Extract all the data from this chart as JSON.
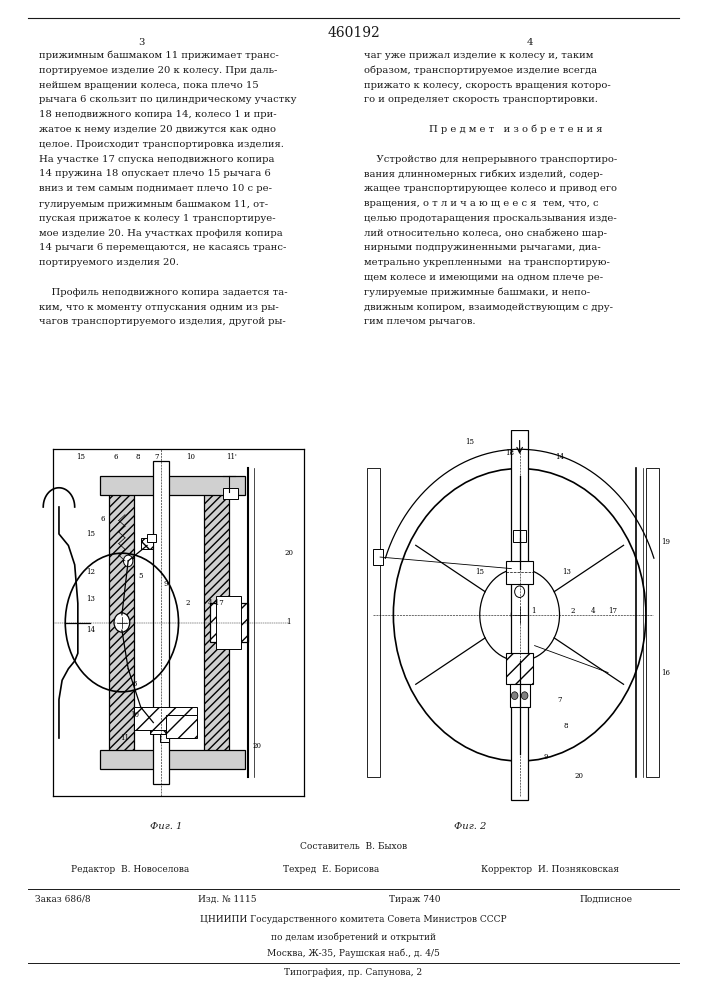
{
  "patent_number": "460192",
  "page_numbers": [
    "3",
    "4"
  ],
  "bg_color": "#ffffff",
  "text_color": "#1a1a1a",
  "column_left_text": [
    "прижимным башмаком 11 прижимает транс-",
    "портируемое изделие 20 к колесу. При даль-",
    "нейшем вращении колеса, пока плечо 15",
    "рычага 6 скользит по цилиндрическому участку",
    "18 неподвижного копира 14, колесо 1 и при-",
    "жатое к нему изделие 20 движутся как одно",
    "целое. Происходит транспортировка изделия.",
    "На участке 17 спуска неподвижного копира",
    "14 пружина 18 опускает плечо 15 рычага 6",
    "вниз и тем самым поднимает плечо 10 с ре-",
    "гулируемым прижимным башмаком 11, от-",
    "пуская прижатое к колесу 1 транспортируе-",
    "мое изделие 20. На участках профиля копира",
    "14 рычаги 6 перемещаются, не касаясь транс-",
    "портируемого изделия 20.",
    "",
    "    Профиль неподвижного копира задается та-",
    "ким, что к моменту отпускания одним из ры-",
    "чагов транспортируемого изделия, другой ры-"
  ],
  "column_right_text": [
    "чаг уже прижал изделие к колесу и, таким",
    "образом, транспортируемое изделие всегда",
    "прижато к колесу, скорость вращения которо-",
    "го и определяет скорость транспортировки.",
    "",
    "П р е д м е т   и з о б р е т е н и я",
    "",
    "    Устройство для непрерывного транспортиро-",
    "вания длинномерных гибких изделий, содер-",
    "жащее транспортирующее колесо и привод его",
    "вращения, о т л и ч а ю щ е е с я  тем, что, с",
    "целью продотаращения проскальзывания изде-",
    "лий относительно колеса, оно снабжено шар-",
    "нирными подпружиненными рычагами, диа-",
    "метрально укрепленными  на транспортирую-",
    "щем колесе и имеющими на одном плече ре-",
    "гулируемые прижимные башмаки, и непо-",
    "движным копиром, взаимодействующим с дру-",
    "гим плечом рычагов."
  ],
  "fig1_caption": "Фиг. 1",
  "fig2_caption": "Фиг. 2",
  "footer_composer_label": "Составитель",
  "footer_composer": "В. Быхов",
  "footer_editor_label": "Редактор",
  "footer_editor": "В. Новоселова",
  "footer_techred_label": "Техред",
  "footer_techred": "Е. Борисова",
  "footer_corrector_label": "Корректор",
  "footer_corrector": "И. Позняковская",
  "footer_order": "Заказ 686/8",
  "footer_izd": "Изд. № 1115",
  "footer_tirazh": "Тираж 740",
  "footer_podpisnoe": "Подписное",
  "footer_org": "ЦНИИПИ Государственного комитета Совета Министров СССР",
  "footer_org2": "по делам изобретений и открытий",
  "footer_address": "Москва, Ж-35, Раушская наб., д. 4/5",
  "footer_typography": "Типография, пр. Сапунова, 2"
}
